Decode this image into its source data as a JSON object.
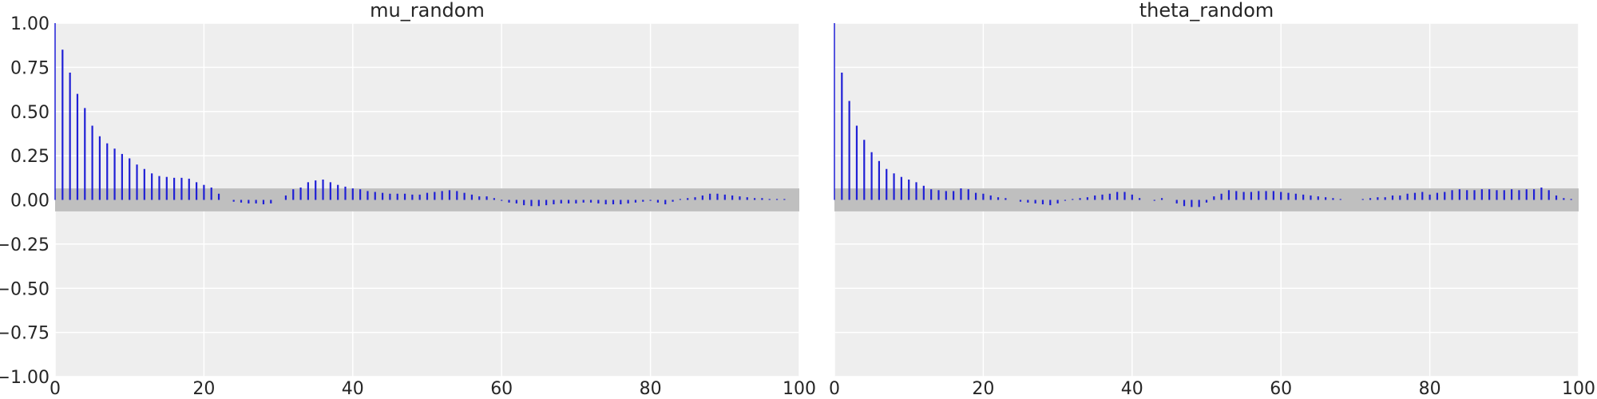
{
  "colors": {
    "figure_bg": "#ffffff",
    "axes_bg": "#eeeeee",
    "grid": "#ffffff",
    "band": "#bfbfbf",
    "stem": "#1f1fd6",
    "text": "#262626"
  },
  "chart_data": [
    {
      "type": "bar",
      "subtype": "autocorrelation-stem",
      "title": "mu_random",
      "xlabel": "",
      "ylabel": "",
      "xlim": [
        0,
        100
      ],
      "ylim": [
        -1.0,
        1.0
      ],
      "xticks": [
        0,
        20,
        40,
        60,
        80,
        100
      ],
      "yticks": [
        -1.0,
        -0.75,
        -0.5,
        -0.25,
        0.0,
        0.25,
        0.5,
        0.75,
        1.0
      ],
      "ytick_labels": [
        "−1.00",
        "−0.75",
        "−0.50",
        "−0.25",
        "0.00",
        "0.25",
        "0.50",
        "0.75",
        "1.00"
      ],
      "xtick_labels": [
        "0",
        "20",
        "40",
        "60",
        "80",
        "100"
      ],
      "grid": true,
      "confidence_band": [
        -0.065,
        0.065
      ],
      "lags": [
        0,
        1,
        2,
        3,
        4,
        5,
        6,
        7,
        8,
        9,
        10,
        11,
        12,
        13,
        14,
        15,
        16,
        17,
        18,
        19,
        20,
        21,
        22,
        23,
        24,
        25,
        26,
        27,
        28,
        29,
        30,
        31,
        32,
        33,
        34,
        35,
        36,
        37,
        38,
        39,
        40,
        41,
        42,
        43,
        44,
        45,
        46,
        47,
        48,
        49,
        50,
        51,
        52,
        53,
        54,
        55,
        56,
        57,
        58,
        59,
        60,
        61,
        62,
        63,
        64,
        65,
        66,
        67,
        68,
        69,
        70,
        71,
        72,
        73,
        74,
        75,
        76,
        77,
        78,
        79,
        80,
        81,
        82,
        83,
        84,
        85,
        86,
        87,
        88,
        89,
        90,
        91,
        92,
        93,
        94,
        95,
        96,
        97,
        98,
        99
      ],
      "values": [
        1.0,
        0.85,
        0.72,
        0.6,
        0.52,
        0.42,
        0.36,
        0.32,
        0.29,
        0.26,
        0.235,
        0.2,
        0.175,
        0.15,
        0.135,
        0.13,
        0.125,
        0.125,
        0.12,
        0.1,
        0.085,
        0.07,
        0.035,
        0.0,
        -0.01,
        -0.015,
        -0.02,
        -0.02,
        -0.025,
        -0.02,
        0.0,
        0.025,
        0.06,
        0.07,
        0.1,
        0.11,
        0.115,
        0.1,
        0.085,
        0.075,
        0.065,
        0.06,
        0.05,
        0.045,
        0.04,
        0.035,
        0.035,
        0.035,
        0.03,
        0.03,
        0.04,
        0.045,
        0.05,
        0.055,
        0.05,
        0.04,
        0.03,
        0.02,
        0.02,
        0.01,
        -0.005,
        -0.015,
        -0.02,
        -0.03,
        -0.035,
        -0.035,
        -0.03,
        -0.025,
        -0.02,
        -0.02,
        -0.02,
        -0.015,
        -0.015,
        -0.02,
        -0.025,
        -0.025,
        -0.025,
        -0.02,
        -0.015,
        -0.01,
        -0.005,
        -0.015,
        -0.025,
        -0.01,
        0.005,
        0.01,
        0.015,
        0.025,
        0.035,
        0.035,
        0.03,
        0.025,
        0.02,
        0.015,
        0.01,
        0.01,
        0.005,
        0.005,
        0.005,
        0.0
      ]
    },
    {
      "type": "bar",
      "subtype": "autocorrelation-stem",
      "title": "theta_random",
      "xlabel": "",
      "ylabel": "",
      "xlim": [
        0,
        100
      ],
      "ylim": [
        -1.0,
        1.0
      ],
      "xticks": [
        0,
        20,
        40,
        60,
        80,
        100
      ],
      "yticks": [
        -1.0,
        -0.75,
        -0.5,
        -0.25,
        0.0,
        0.25,
        0.5,
        0.75,
        1.0
      ],
      "xtick_labels": [
        "0",
        "20",
        "40",
        "60",
        "80",
        "100"
      ],
      "grid": true,
      "confidence_band": [
        -0.065,
        0.065
      ],
      "lags": [
        0,
        1,
        2,
        3,
        4,
        5,
        6,
        7,
        8,
        9,
        10,
        11,
        12,
        13,
        14,
        15,
        16,
        17,
        18,
        19,
        20,
        21,
        22,
        23,
        24,
        25,
        26,
        27,
        28,
        29,
        30,
        31,
        32,
        33,
        34,
        35,
        36,
        37,
        38,
        39,
        40,
        41,
        42,
        43,
        44,
        45,
        46,
        47,
        48,
        49,
        50,
        51,
        52,
        53,
        54,
        55,
        56,
        57,
        58,
        59,
        60,
        61,
        62,
        63,
        64,
        65,
        66,
        67,
        68,
        69,
        70,
        71,
        72,
        73,
        74,
        75,
        76,
        77,
        78,
        79,
        80,
        81,
        82,
        83,
        84,
        85,
        86,
        87,
        88,
        89,
        90,
        91,
        92,
        93,
        94,
        95,
        96,
        97,
        98,
        99
      ],
      "values": [
        1.0,
        0.72,
        0.56,
        0.42,
        0.34,
        0.27,
        0.22,
        0.175,
        0.15,
        0.13,
        0.115,
        0.1,
        0.08,
        0.06,
        0.055,
        0.05,
        0.05,
        0.065,
        0.06,
        0.04,
        0.035,
        0.025,
        0.015,
        0.01,
        0.0,
        -0.01,
        -0.015,
        -0.02,
        -0.025,
        -0.03,
        -0.02,
        -0.005,
        0.005,
        0.01,
        0.015,
        0.025,
        0.03,
        0.035,
        0.045,
        0.045,
        0.03,
        0.01,
        0.0,
        -0.005,
        0.01,
        0.0,
        -0.02,
        -0.035,
        -0.04,
        -0.04,
        -0.015,
        0.02,
        0.035,
        0.055,
        0.05,
        0.045,
        0.045,
        0.05,
        0.05,
        0.05,
        0.045,
        0.04,
        0.035,
        0.03,
        0.025,
        0.02,
        0.015,
        0.01,
        0.005,
        0.0,
        0.0,
        0.005,
        0.01,
        0.015,
        0.015,
        0.025,
        0.025,
        0.035,
        0.04,
        0.045,
        0.03,
        0.04,
        0.045,
        0.055,
        0.06,
        0.055,
        0.055,
        0.06,
        0.06,
        0.055,
        0.055,
        0.06,
        0.055,
        0.06,
        0.06,
        0.07,
        0.055,
        0.025,
        0.01,
        0.005
      ]
    }
  ]
}
